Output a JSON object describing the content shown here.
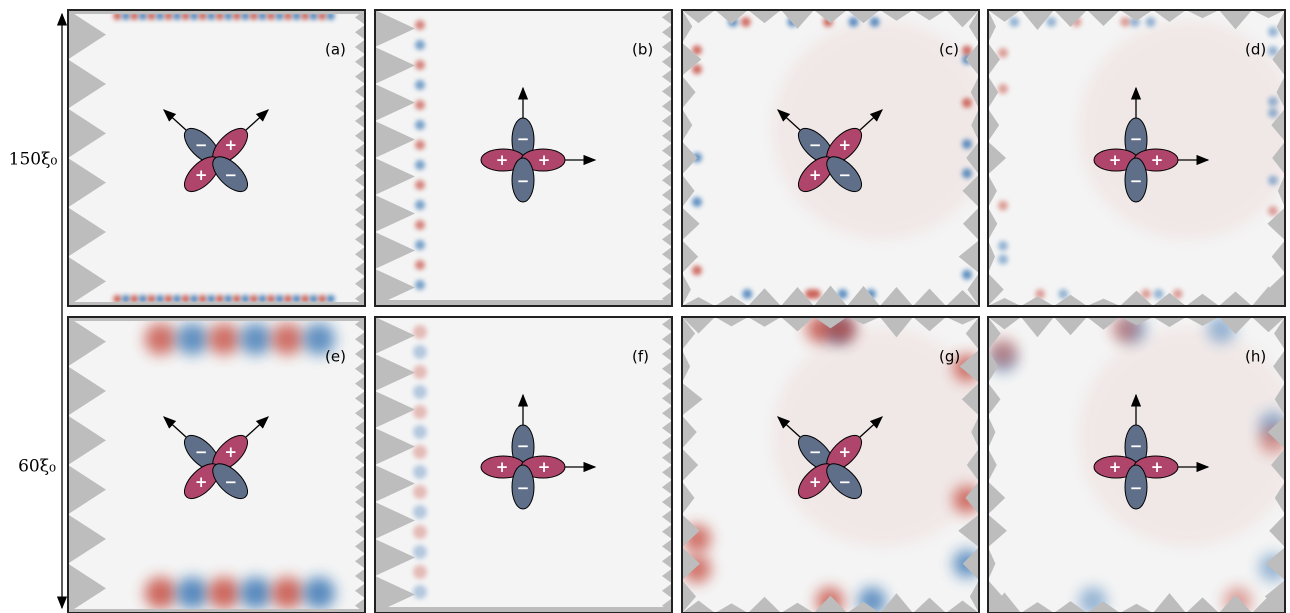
{
  "row_labels": [
    "150ξ₀",
    "60ξ₀"
  ],
  "panels": [
    {
      "label": "(a)",
      "signs": [
        "−",
        "+",
        "+",
        "−"
      ]
    },
    {
      "label": "(b)",
      "signs": [
        "−",
        "+",
        "+",
        "−"
      ]
    },
    {
      "label": "(c)",
      "signs": [
        "−",
        "+",
        "+",
        "−"
      ]
    },
    {
      "label": "(d)",
      "signs": [
        "−",
        "+",
        "+",
        "−"
      ]
    },
    {
      "label": "(e)",
      "signs": [
        "−",
        "+",
        "+",
        "−"
      ]
    },
    {
      "label": "(f)",
      "signs": [
        "−",
        "+",
        "+",
        "−"
      ]
    },
    {
      "label": "(g)",
      "signs": [
        "−",
        "+",
        "+",
        "−"
      ]
    },
    {
      "label": "(h)",
      "signs": [
        "−",
        "+",
        "+",
        "−"
      ]
    }
  ]
}
